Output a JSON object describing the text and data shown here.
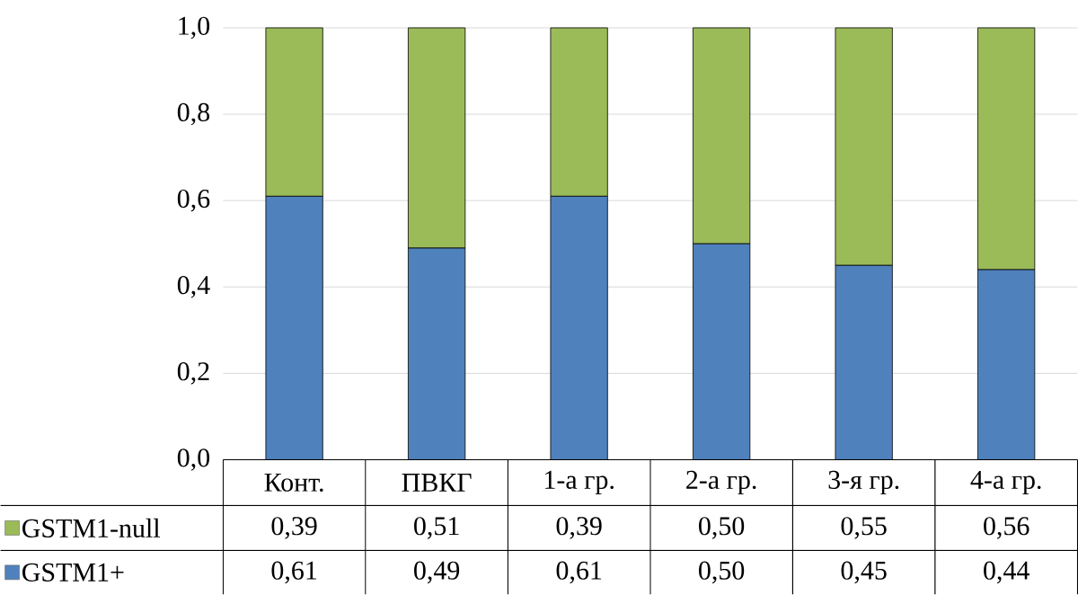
{
  "chart_data": {
    "type": "bar",
    "stacked": true,
    "categories": [
      "Конт.",
      "ПВКГ",
      "1-а гр.",
      "2-а гр.",
      "3-я гр.",
      "4-а гр."
    ],
    "series": [
      {
        "name": "GSTM1+",
        "color": "#4f81bd",
        "values": [
          0.61,
          0.49,
          0.61,
          0.5,
          0.45,
          0.44
        ],
        "value_labels": [
          "0,61",
          "0,49",
          "0,61",
          "0,50",
          "0,45",
          "0,44"
        ]
      },
      {
        "name": "GSTM1-null",
        "color": "#9bbb59",
        "values": [
          0.39,
          0.51,
          0.39,
          0.5,
          0.55,
          0.56
        ],
        "value_labels": [
          "0,39",
          "0,51",
          "0,39",
          "0,50",
          "0,55",
          "0,56"
        ]
      }
    ],
    "ylim": [
      0,
      1
    ],
    "yticks": [
      {
        "value": 0,
        "label": "0,0"
      },
      {
        "value": 0.2,
        "label": "0,2"
      },
      {
        "value": 0.4,
        "label": "0,4"
      },
      {
        "value": 0.6,
        "label": "0,6"
      },
      {
        "value": 0.8,
        "label": "0,8"
      },
      {
        "value": 1,
        "label": "1,0"
      }
    ],
    "grid": "y",
    "legend": "bottom"
  }
}
